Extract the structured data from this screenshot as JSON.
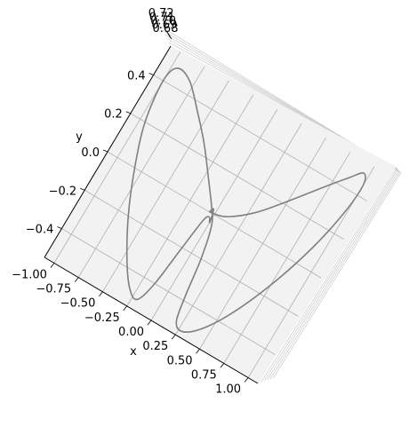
{
  "chart_data": {
    "type": "line",
    "projection": "3d",
    "title": "",
    "xlabel": "x",
    "ylabel": "y",
    "zlabel": "",
    "x_ticks": [
      "−1.00",
      "−0.75",
      "−0.50",
      "−0.25",
      "0.00",
      "0.25",
      "0.50",
      "0.75",
      "1.00"
    ],
    "y_ticks": [
      "−0.4",
      "−0.2",
      "0.0",
      "0.2",
      "0.4"
    ],
    "z_ticks": [
      "0.68",
      "0.69",
      "0.70",
      "0.71",
      "0.72"
    ],
    "xlim": [
      -1.1,
      1.1
    ],
    "ylim": [
      -0.55,
      0.55
    ],
    "grid": true,
    "series": [
      {
        "color": "#808080",
        "points": [
          [
            -0.05,
            0.0
          ],
          [
            0.1,
            0.02
          ],
          [
            0.3,
            0.1
          ],
          [
            0.5,
            0.22
          ],
          [
            0.7,
            0.35
          ],
          [
            0.86,
            0.45
          ],
          [
            0.95,
            0.5
          ],
          [
            1.0,
            0.45
          ],
          [
            0.98,
            0.3
          ],
          [
            0.9,
            0.1
          ],
          [
            0.78,
            -0.1
          ],
          [
            0.62,
            -0.3
          ],
          [
            0.45,
            -0.45
          ],
          [
            0.3,
            -0.52
          ],
          [
            0.2,
            -0.5
          ],
          [
            0.15,
            -0.38
          ],
          [
            0.1,
            -0.2
          ],
          [
            0.03,
            -0.05
          ],
          [
            -0.05,
            0.02
          ],
          [
            -0.2,
            0.12
          ],
          [
            -0.4,
            0.25
          ],
          [
            -0.6,
            0.36
          ],
          [
            -0.8,
            0.46
          ],
          [
            -0.95,
            0.48
          ],
          [
            -1.0,
            0.4
          ],
          [
            -0.95,
            0.2
          ],
          [
            -0.82,
            0.0
          ],
          [
            -0.65,
            -0.2
          ],
          [
            -0.45,
            -0.38
          ],
          [
            -0.3,
            -0.48
          ],
          [
            -0.2,
            -0.5
          ],
          [
            -0.14,
            -0.4
          ],
          [
            -0.1,
            -0.22
          ],
          [
            -0.06,
            -0.05
          ],
          [
            -0.03,
            -0.02
          ],
          [
            0.0,
            -0.04
          ],
          [
            -0.03,
            0.02
          ],
          [
            -0.05,
            0.0
          ]
        ]
      }
    ]
  }
}
